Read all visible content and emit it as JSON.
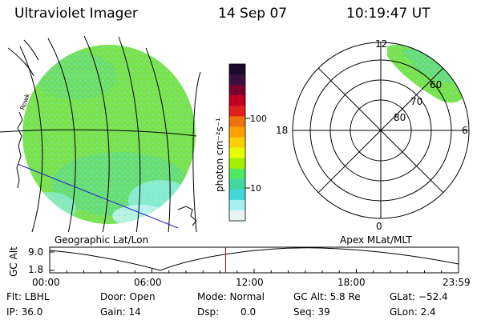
{
  "header": {
    "title": "Ultraviolet Imager",
    "date": "14 Sep 07",
    "time": "10:19:47 UT"
  },
  "left_panel": {
    "caption": "Geographic Lat/Lon",
    "coast_label": "Rowk"
  },
  "colorbar": {
    "unit_label": "photon cm⁻²s⁻¹",
    "tick_labels": [
      "100",
      "10"
    ],
    "colors": [
      "#1a0a2e",
      "#3a1040",
      "#7a0030",
      "#c0001e",
      "#e0201e",
      "#f07010",
      "#ffa000",
      "#ffd000",
      "#e8ff00",
      "#a0f000",
      "#50e860",
      "#40d8a0",
      "#40d8d8",
      "#a8f0f0",
      "#e8f4f4"
    ]
  },
  "right_panel": {
    "caption": "Apex MLat/MLT",
    "mlt_labels": {
      "top": "12",
      "left": "18",
      "right": "6",
      "bottom": "0"
    },
    "lat_labels": [
      "60",
      "70",
      "80"
    ]
  },
  "altitude_plot": {
    "ylabel": "GC Alt",
    "y_ticks": [
      "9.0",
      "1.8"
    ],
    "x_ticks": [
      "00:00",
      "06:00",
      "12:00",
      "18:00",
      "23:59"
    ],
    "current_time_hours": 10.33
  },
  "footer": {
    "filter": "Flt: LBHL",
    "door": "Door: Open",
    "mode": "Mode: Normal",
    "gc_alt": "GC Alt: 5.8 Re",
    "glat": "GLat: −52.4",
    "ip": "IP: 36.0",
    "gain": "Gain: 14",
    "dsp_label": "Dsp:",
    "dsp_value": "0.0",
    "seq": "Seq: 39",
    "glon": "GLon: 2.4"
  }
}
